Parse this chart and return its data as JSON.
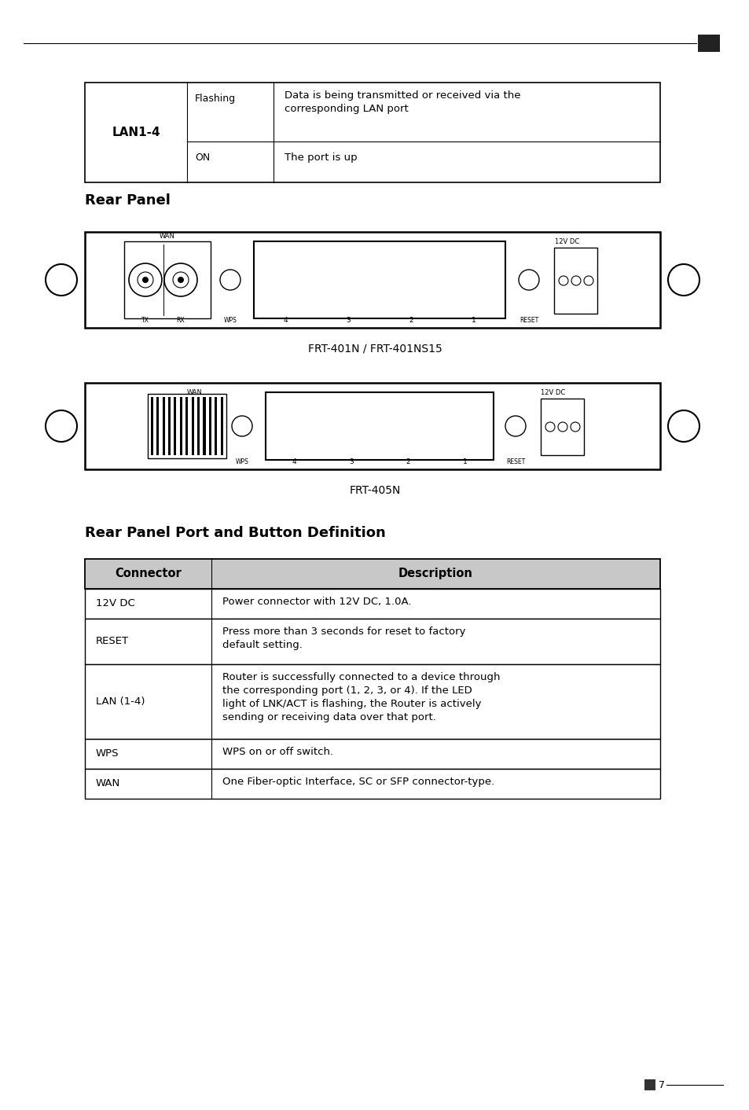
{
  "page_bg": "#ffffff",
  "page_number": "7",
  "top_table": {
    "col1_label": "LAN1-4",
    "row1_col2": "Flashing",
    "row1_col3": "Data is being transmitted or received via the\ncorresponding LAN port",
    "row2_col2": "ON",
    "row2_col3": "The port is up"
  },
  "rear_panel_title": "Rear Panel",
  "diagram1_caption": "FRT-401N / FRT-401NS15",
  "diagram2_caption": "FRT-405N",
  "bottom_table_title": "Rear Panel Port and Button Definition",
  "bottom_table": {
    "headers": [
      "Connector",
      "Description"
    ],
    "header_bg": "#c8c8c8",
    "rows": [
      {
        "col1": "12V DC",
        "col2": "Power connector with 12V DC, 1.0A."
      },
      {
        "col1": "RESET",
        "col2": "Press more than 3 seconds for reset to factory\ndefault setting."
      },
      {
        "col1": "LAN (1-4)",
        "col2": "Router is successfully connected to a device through\nthe corresponding port (1, 2, 3, or 4). If the LED\nlight of LNK/ACT is flashing, the Router is actively\nsending or receiving data over that port."
      },
      {
        "col1": "WPS",
        "col2": "WPS on or off switch."
      },
      {
        "col1": "WAN",
        "col2": "One Fiber-optic Interface, SC or SFP connector-type."
      }
    ]
  }
}
